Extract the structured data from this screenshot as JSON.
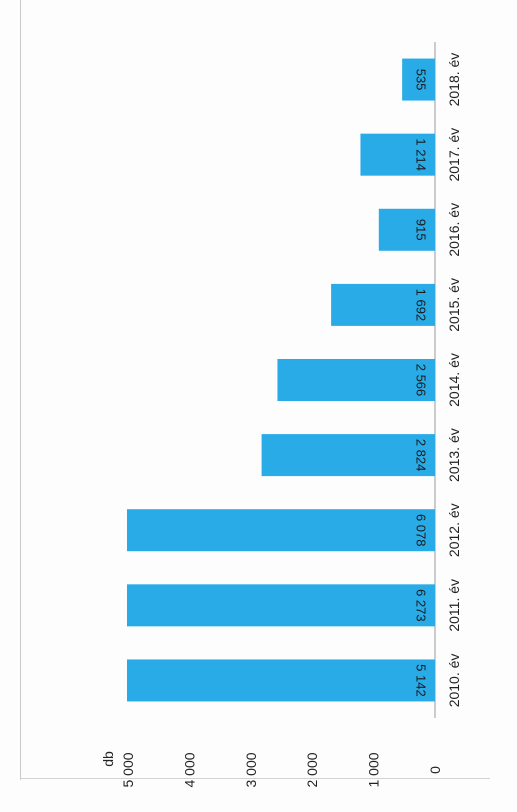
{
  "chart_data": {
    "type": "bar",
    "orientation": "rotated-90",
    "unit_label": "db",
    "categories": [
      "2010. év",
      "2011. év",
      "2012. év",
      "2013. év",
      "2014. év",
      "2015. év",
      "2016. év",
      "2017. év",
      "2018. év"
    ],
    "values": [
      5142,
      6273,
      6078,
      2824,
      2566,
      1692,
      915,
      1214,
      535
    ],
    "value_labels": [
      "5 142",
      "6 273",
      "6 078",
      "2 824",
      "2 566",
      "1 692",
      "915",
      "1 214",
      "535"
    ],
    "axis_max_display": 5000,
    "tick_values": [
      0,
      1000,
      2000,
      3000,
      4000,
      5000
    ],
    "tick_labels": [
      "0",
      "1 000",
      "2 000",
      "3 000",
      "4 000",
      "5 000"
    ],
    "bar_color": "#29abe7",
    "grid": false,
    "legend": "none",
    "title": ""
  }
}
